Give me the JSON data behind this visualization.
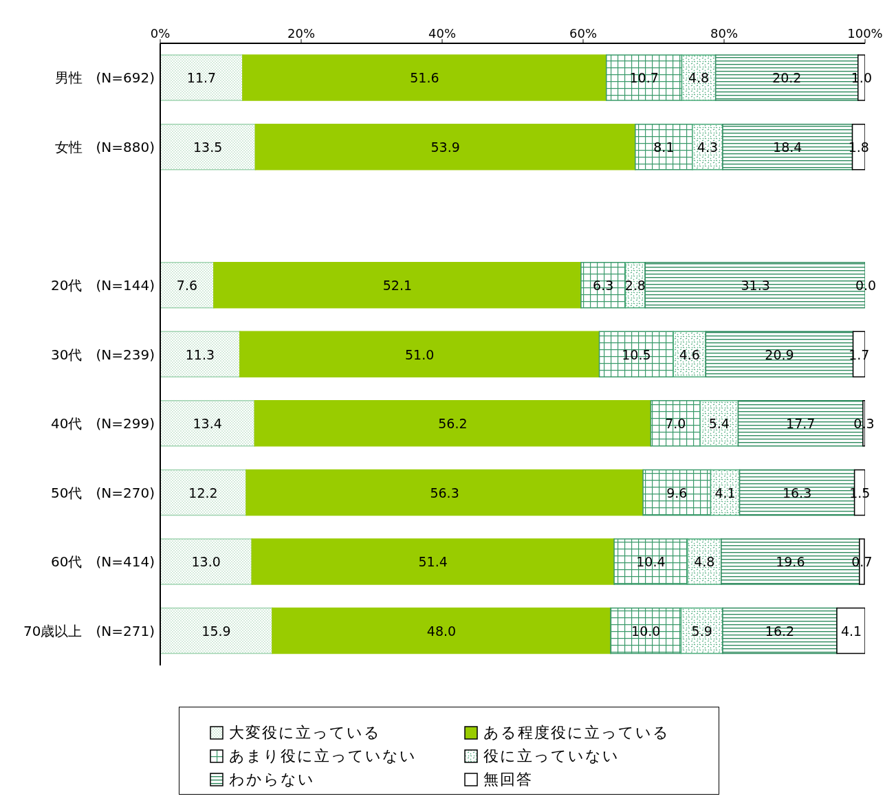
{
  "chart_data": {
    "type": "bar",
    "orientation": "horizontal",
    "stacked": true,
    "categories": [
      "男性　(N=692)",
      "女性　(N=880)",
      null,
      "20代　(N=144)",
      "30代　(N=239)",
      "40代　(N=299)",
      "50代　(N=270)",
      "60代　(N=414)",
      "70歳以上　(N=271)"
    ],
    "series": [
      {
        "name": "大変役に立っている",
        "color": "#9fd3b0",
        "values": [
          11.7,
          13.5,
          null,
          7.6,
          11.3,
          13.4,
          12.2,
          13.0,
          15.9
        ],
        "value_labels": [
          "11.7",
          "13.5",
          null,
          "7.6",
          "11.3",
          "13.4",
          "12.2",
          "13.0",
          "15.9"
        ]
      },
      {
        "name": "ある程度役に立っている",
        "color": "#99cc00",
        "values": [
          51.6,
          53.9,
          null,
          52.1,
          51.0,
          56.2,
          56.3,
          51.4,
          48.0
        ],
        "value_labels": [
          "51.6",
          "53.9",
          null,
          "52.1",
          "51.0",
          "56.2",
          "56.3",
          "51.4",
          "48.0"
        ]
      },
      {
        "name": "あまり役に立っていない",
        "color": "#3a9a6a",
        "values": [
          10.7,
          8.1,
          null,
          6.3,
          10.5,
          7.0,
          9.6,
          10.4,
          10.0
        ],
        "value_labels": [
          "10.7",
          "8.1",
          null,
          "6.3",
          "10.5",
          "7.0",
          "9.6",
          "10.4",
          "10.0"
        ]
      },
      {
        "name": "役に立っていない",
        "color": "#4aaa7a",
        "values": [
          4.8,
          4.3,
          null,
          2.8,
          4.6,
          5.4,
          4.1,
          4.8,
          5.9
        ],
        "value_labels": [
          "4.8",
          "4.3",
          null,
          "2.8",
          "4.6",
          "5.4",
          "4.1",
          "4.8",
          "5.9"
        ]
      },
      {
        "name": "わからない",
        "color": "#2e8b5e",
        "values": [
          20.2,
          18.4,
          null,
          31.3,
          20.9,
          17.7,
          16.3,
          19.6,
          16.2
        ],
        "value_labels": [
          "20.2",
          "18.4",
          null,
          "31.3",
          "20.9",
          "17.7",
          "16.3",
          "19.6",
          "16.2"
        ]
      },
      {
        "name": "無回答",
        "color": "#ffffff",
        "values": [
          1.0,
          1.8,
          null,
          0.0,
          1.7,
          0.3,
          1.5,
          0.7,
          4.1
        ],
        "value_labels": [
          "1.0",
          "1.8",
          null,
          "0.0",
          "1.7",
          "0.3",
          "1.5",
          "0.7",
          "4.1"
        ]
      }
    ],
    "xlim": [
      0,
      100
    ],
    "xticks": [
      {
        "value": 0,
        "label": "0%"
      },
      {
        "value": 20,
        "label": "20%"
      },
      {
        "value": 40,
        "label": "40%"
      },
      {
        "value": 60,
        "label": "60%"
      },
      {
        "value": 80,
        "label": "80%"
      },
      {
        "value": 100,
        "label": "100%"
      }
    ],
    "legend": "bottom",
    "grid": false
  }
}
